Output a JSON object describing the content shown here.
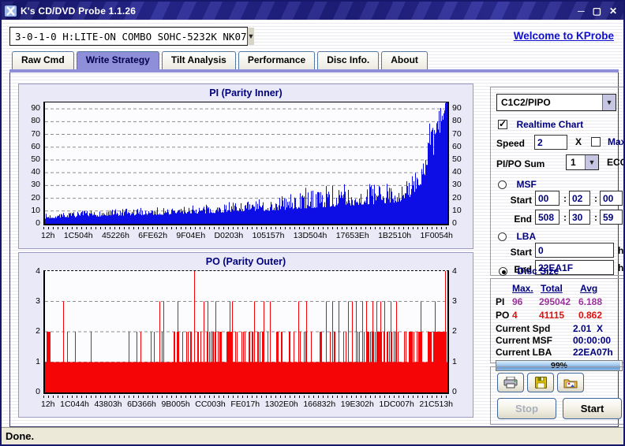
{
  "window": {
    "title": "K's CD/DVD Probe 1.1.26",
    "controls": {
      "minimize": "─",
      "maximize": "▢",
      "close": "✕"
    }
  },
  "header": {
    "drive": "3-0-1-0 H:LITE-ON COMBO SOHC-5232K NK07",
    "welcome_link": "Welcome to KProbe"
  },
  "tabs": {
    "items": [
      {
        "label": "Raw Cmd",
        "active": false
      },
      {
        "label": "Write Strategy",
        "active": true
      },
      {
        "label": "Tilt Analysis",
        "active": false
      },
      {
        "label": "Performance",
        "active": false
      },
      {
        "label": "Disc Info.",
        "active": false
      },
      {
        "label": "About",
        "active": false
      }
    ]
  },
  "chart_data": [
    {
      "id": "pi",
      "type": "bar",
      "title": "PI (Parity Inner)",
      "color": "#0d0de6",
      "ylim": [
        0,
        95
      ],
      "yticks": [
        0,
        10,
        20,
        30,
        40,
        50,
        60,
        70,
        80,
        90
      ],
      "grid": "dashed-horizontal",
      "legend": "none",
      "xticklabels": [
        "12h",
        "1C504h",
        "45226h",
        "6FE62h",
        "9F04Eh",
        "D0203h",
        "105157h",
        "13D504h",
        "17653Eh",
        "1B2510h",
        "1F0054h"
      ],
      "max": 96,
      "total": 295042,
      "avg": 6.188,
      "seed": 7,
      "samples": {
        "t": [
          0,
          0.05,
          0.1,
          0.15,
          0.2,
          0.25,
          0.3,
          0.35,
          0.4,
          0.45,
          0.5,
          0.55,
          0.6,
          0.65,
          0.7,
          0.75,
          0.8,
          0.85,
          0.88,
          0.9,
          0.92,
          0.94,
          0.96,
          0.975,
          0.99,
          1
        ],
        "avg": [
          4,
          5,
          5,
          6,
          6,
          7,
          7,
          8,
          8,
          9,
          10,
          10,
          11,
          12,
          13,
          14,
          15,
          16,
          17,
          19,
          24,
          32,
          45,
          60,
          78,
          92
        ],
        "peak": [
          8,
          9,
          10,
          11,
          12,
          13,
          13,
          14,
          15,
          16,
          18,
          20,
          24,
          26,
          30,
          28,
          30,
          32,
          30,
          36,
          46,
          58,
          72,
          86,
          94,
          96
        ]
      }
    },
    {
      "id": "po",
      "type": "bar",
      "title": "PO (Parity Outer)",
      "color": "#f50505",
      "ylim": [
        0,
        4
      ],
      "yticks": [
        0,
        1,
        2,
        3,
        4
      ],
      "grid": "dashed-horizontal",
      "legend": "none",
      "xticklabels": [
        "12h",
        "1C044h",
        "43803h",
        "6D366h",
        "9B005h",
        "CC003h",
        "FE017h",
        "1302E0h",
        "166832h",
        "19E302h",
        "1DC007h",
        "21C513h"
      ],
      "max": 4,
      "total": 41115,
      "avg": 0.862,
      "seed": 13,
      "base": 1,
      "spike2_regions": [
        {
          "from": 0,
          "to": 0.05,
          "density": 0.1
        },
        {
          "from": 0.05,
          "to": 0.25,
          "density": 0.05
        },
        {
          "from": 0.25,
          "to": 0.33,
          "density": 0.16
        },
        {
          "from": 0.33,
          "to": 0.45,
          "density": 0.3
        },
        {
          "from": 0.45,
          "to": 0.55,
          "density": 0.42
        },
        {
          "from": 0.55,
          "to": 0.65,
          "density": 0.28
        },
        {
          "from": 0.65,
          "to": 0.75,
          "density": 0.15
        },
        {
          "from": 0.75,
          "to": 0.95,
          "density": 0.4
        },
        {
          "from": 0.95,
          "to": 0.965,
          "density": 0.65
        },
        {
          "from": 0.965,
          "to": 1,
          "density": 1.0
        }
      ],
      "spikes3": [
        0.045,
        0.285,
        0.295,
        0.33,
        0.395,
        0.405,
        0.425,
        0.46,
        0.465,
        0.52,
        0.545,
        0.56,
        0.63,
        0.65,
        0.7,
        0.715,
        0.73,
        0.755,
        0.765,
        0.775,
        0.79,
        0.8,
        0.815,
        0.825,
        0.835,
        0.845,
        0.86,
        0.875,
        0.935,
        0.97
      ],
      "spikes4": [
        0.372,
        0.996
      ]
    }
  ],
  "controls": {
    "mode_select": "C1C2/PIPO",
    "realtime_chart": {
      "label": "Realtime Chart",
      "checked": true
    },
    "speed": {
      "label": "Speed",
      "value": "2",
      "unit": "X"
    },
    "max_check": {
      "label": "Max",
      "checked": false
    },
    "pipo_sum": {
      "label": "PI/PO Sum",
      "value": "1",
      "unit": "ECC"
    },
    "msf": {
      "label": "MSF",
      "selected": false,
      "start_label": "Start",
      "end_label": "End",
      "sep": ":",
      "start": [
        "00",
        "02",
        "00"
      ],
      "end": [
        "508",
        "30",
        "59"
      ]
    },
    "lba": {
      "label": "LBA",
      "selected": false,
      "start_label": "Start",
      "end_label": "End",
      "start": "0",
      "end": "22EA1F",
      "unit": "h"
    },
    "disc_size": {
      "label": "Disc Size",
      "selected": true
    }
  },
  "stats": {
    "headers": [
      "Max.",
      "Total",
      "Avg"
    ],
    "rows": [
      {
        "label": "PI",
        "max": "96",
        "total": "295042",
        "avg": "6.188"
      },
      {
        "label": "PO",
        "max": "4",
        "total": "41115",
        "avg": "0.862"
      }
    ],
    "current": [
      {
        "label": "Current Spd",
        "value": "2.01  X"
      },
      {
        "label": "Current MSF",
        "value": "00:00:00"
      },
      {
        "label": "Current LBA",
        "value": "22EA07h"
      }
    ],
    "progress": {
      "percent": 99,
      "label": "99%"
    }
  },
  "actions": {
    "stop": "Stop",
    "start": "Start",
    "stop_enabled": false
  },
  "status_bar": {
    "text": "Done."
  }
}
